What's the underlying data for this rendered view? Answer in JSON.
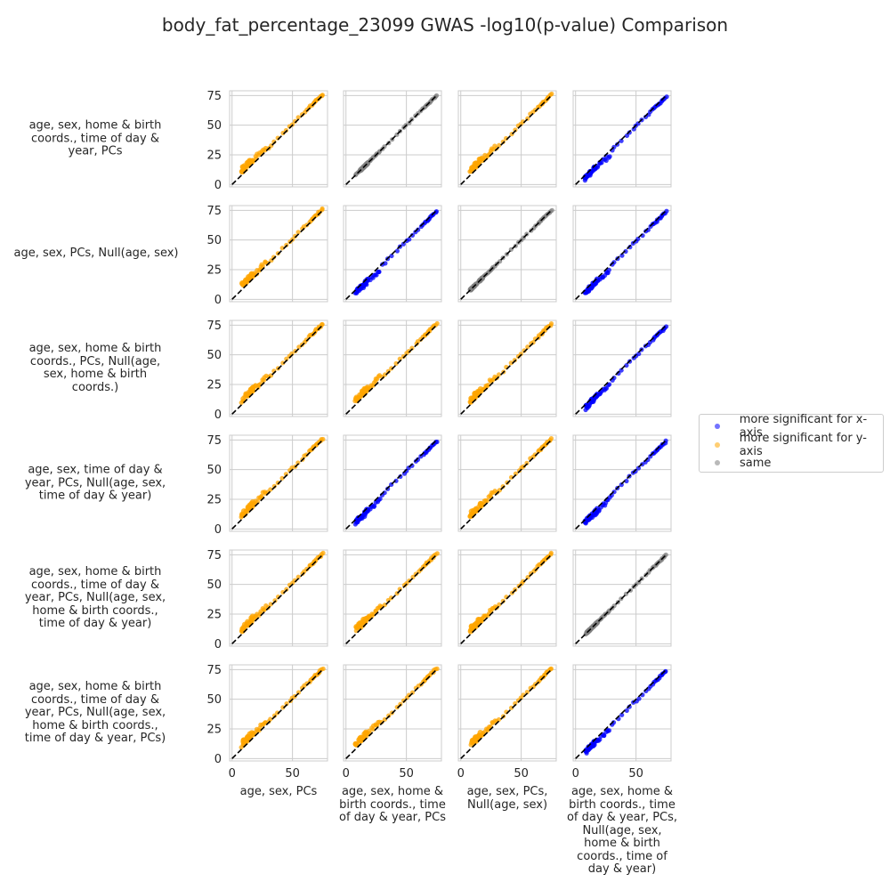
{
  "title": "body_fat_percentage_23099 GWAS -log10(p-value) Comparison",
  "colors": {
    "x_more": "#0000ff",
    "y_more": "#ffa500",
    "same": "#808080",
    "diagonal": "#000000",
    "grid": "#cccccc",
    "axes_edge": "#cccccc"
  },
  "legend": {
    "placement": "center-right",
    "items": [
      {
        "label": "more significant for x-axis",
        "color": "#0000ff"
      },
      {
        "label": "more significant for y-axis",
        "color": "#ffa500"
      },
      {
        "label": "same",
        "color": "#808080"
      }
    ]
  },
  "chart_data": {
    "type": "scatter",
    "grid": true,
    "xlim": [
      -2,
      79
    ],
    "ylim": [
      -2,
      79
    ],
    "x_ticks": [
      0,
      50
    ],
    "y_ticks": [
      0,
      25,
      50,
      75
    ],
    "row_labels": [
      "age, sex, home & birth coords., time of day & year, PCs",
      "age, sex, PCs, Null(age, sex)",
      "age, sex, home & birth coords., PCs, Null(age, sex, home & birth coords.)",
      "age, sex, time of day & year, PCs, Null(age, sex, time of day & year)",
      "age, sex, home & birth coords., time of day & year, PCs, Null(age, sex, home & birth coords., time of day & year)",
      "age, sex, home & birth coords., time of day & year, PCs, Null(age, sex, home & birth coords., time of day & year, PCs)"
    ],
    "col_labels": [
      "age, sex, PCs",
      "age, sex, home & birth coords., time of day & year, PCs",
      "age, sex, PCs, Null(age, sex)",
      "age, sex, home & birth coords., time of day & year, PCs, Null(age, sex, home & birth coords., time of day & year)"
    ],
    "panel_types": [
      [
        "y",
        "same",
        "y",
        "x"
      ],
      [
        "y",
        "x",
        "same",
        "x"
      ],
      [
        "y",
        "y",
        "y",
        "x"
      ],
      [
        "y",
        "x",
        "y",
        "x"
      ],
      [
        "y",
        "y",
        "y",
        "same"
      ],
      [
        "y",
        "y",
        "y",
        "x"
      ]
    ],
    "point_x": [
      8,
      9,
      10,
      11,
      12,
      13,
      14,
      15,
      16,
      17,
      18,
      19,
      20,
      21,
      22,
      23,
      24,
      25,
      26,
      27,
      28,
      30,
      32,
      35,
      38,
      42,
      45,
      48,
      50,
      52,
      55,
      58,
      60,
      62,
      64,
      65,
      66,
      67,
      68,
      69,
      70,
      71,
      72,
      73,
      74,
      75
    ],
    "point_y": [
      8,
      9,
      10,
      11,
      12,
      13,
      14,
      15,
      16,
      17,
      18,
      19,
      20,
      21,
      22,
      23,
      24,
      25,
      26,
      27,
      28,
      30,
      32,
      35,
      38,
      42,
      45,
      48,
      50,
      52,
      55,
      58,
      60,
      62,
      64,
      65,
      66,
      67,
      68,
      69,
      70,
      71,
      72,
      73,
      74,
      75
    ]
  }
}
